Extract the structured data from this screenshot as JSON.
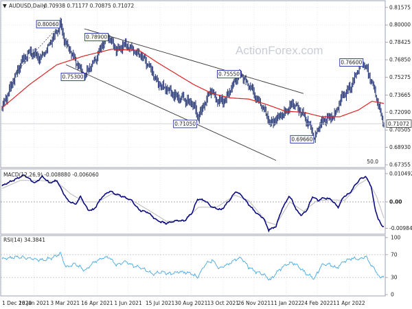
{
  "header": {
    "symbol": "AUDUSD,Daily",
    "ohlc": "0.70938 0.71177 0.70875 0.71072"
  },
  "watermark": "ActionForex.com",
  "colors": {
    "candle": "#2a3a78",
    "ma": "#dd2222",
    "trend": "#333333",
    "label_border": "#1e2fa8",
    "macd": "#0a0a80",
    "signal": "#b8b8b8",
    "rsi": "#44a8e4",
    "level": "#aaaaaa",
    "grid": "#d8dbe2"
  },
  "chart_data": [
    {
      "type": "candlestick",
      "title": "AUDUSD,Daily",
      "ylim": [
        0.67355,
        0.82
      ],
      "yticks": [
        "0.81575",
        "0.80000",
        "0.78425",
        "0.76850",
        "0.75275",
        "0.73665",
        "0.72090",
        "0.70505",
        "0.68930",
        "0.67355"
      ],
      "current_price": "0.71072",
      "scale_note": "50.0",
      "xticks": [
        "1 Dec 2020",
        "18 Jan 2021",
        "3 Mar 2021",
        "16 Apr 2021",
        "1 Jun 2021",
        "15 Jul 2021",
        "30 Aug 2021",
        "13 Oct 2021",
        "26 Nov 2021",
        "11 Jan 2022",
        "24 Feb 2022",
        "11 Apr 2022"
      ],
      "close_anchors": [
        [
          0,
          0.725
        ],
        [
          10,
          0.745
        ],
        [
          20,
          0.765
        ],
        [
          30,
          0.776
        ],
        [
          42,
          0.77
        ],
        [
          52,
          0.782
        ],
        [
          60,
          0.794
        ],
        [
          64,
          0.8006
        ],
        [
          68,
          0.786
        ],
        [
          75,
          0.776
        ],
        [
          85,
          0.76
        ],
        [
          91,
          0.753
        ],
        [
          96,
          0.762
        ],
        [
          105,
          0.773
        ],
        [
          112,
          0.786
        ],
        [
          117,
          0.789
        ],
        [
          125,
          0.778
        ],
        [
          135,
          0.782
        ],
        [
          145,
          0.776
        ],
        [
          152,
          0.772
        ],
        [
          160,
          0.764
        ],
        [
          170,
          0.748
        ],
        [
          180,
          0.742
        ],
        [
          190,
          0.735
        ],
        [
          200,
          0.733
        ],
        [
          210,
          0.728
        ],
        [
          214,
          0.716
        ],
        [
          220,
          0.725
        ],
        [
          228,
          0.741
        ],
        [
          236,
          0.732
        ],
        [
          244,
          0.732
        ],
        [
          250,
          0.742
        ],
        [
          256,
          0.751
        ],
        [
          262,
          0.7555
        ],
        [
          268,
          0.748
        ],
        [
          276,
          0.738
        ],
        [
          286,
          0.725
        ],
        [
          294,
          0.711
        ],
        [
          300,
          0.715
        ],
        [
          310,
          0.721
        ],
        [
          318,
          0.728
        ],
        [
          324,
          0.725
        ],
        [
          330,
          0.718
        ],
        [
          338,
          0.708
        ],
        [
          342,
          0.6966
        ],
        [
          348,
          0.712
        ],
        [
          356,
          0.716
        ],
        [
          364,
          0.718
        ],
        [
          372,
          0.735
        ],
        [
          378,
          0.74
        ],
        [
          384,
          0.748
        ],
        [
          390,
          0.76
        ],
        [
          396,
          0.766
        ],
        [
          400,
          0.758
        ],
        [
          408,
          0.74
        ],
        [
          414,
          0.722
        ],
        [
          418,
          0.7107
        ]
      ],
      "moving_average_anchors": [
        [
          0,
          0.725
        ],
        [
          30,
          0.746
        ],
        [
          60,
          0.764
        ],
        [
          90,
          0.772
        ],
        [
          120,
          0.778
        ],
        [
          150,
          0.777
        ],
        [
          170,
          0.766
        ],
        [
          190,
          0.756
        ],
        [
          210,
          0.746
        ],
        [
          230,
          0.738
        ],
        [
          250,
          0.734
        ],
        [
          270,
          0.733
        ],
        [
          290,
          0.728
        ],
        [
          310,
          0.722
        ],
        [
          330,
          0.721
        ],
        [
          350,
          0.717
        ],
        [
          370,
          0.717
        ],
        [
          390,
          0.723
        ],
        [
          405,
          0.731
        ],
        [
          418,
          0.729
        ]
      ],
      "labels": [
        {
          "text": "0.80060",
          "bar": 64,
          "price": 0.8006,
          "side": "left"
        },
        {
          "text": "0.78900",
          "bar": 117,
          "price": 0.789,
          "side": "left"
        },
        {
          "text": "0.75300",
          "bar": 91,
          "price": 0.753,
          "side": "left"
        },
        {
          "text": "0.75550",
          "bar": 262,
          "price": 0.7555,
          "side": "left"
        },
        {
          "text": "0.71050",
          "bar": 214,
          "price": 0.7105,
          "side": "left"
        },
        {
          "text": "0.69660",
          "bar": 342,
          "price": 0.6966,
          "side": "left"
        },
        {
          "text": "0.76600",
          "bar": 396,
          "price": 0.766,
          "side": "left"
        }
      ],
      "trendlines": [
        {
          "from": [
            90,
            0.7965
          ],
          "to": [
            330,
            0.738
          ]
        },
        {
          "from": [
            70,
            0.764
          ],
          "to": [
            300,
            0.6775
          ]
        }
      ]
    },
    {
      "type": "line",
      "title": "MACD(12,26,9) -0.008880 -0.006060",
      "ylim": [
        -0.0115,
        0.0115
      ],
      "yticks": [
        "0.010492",
        "0.00",
        "-0.009842"
      ],
      "zero_line": 0,
      "series": [
        {
          "name": "MACD",
          "anchors": [
            [
              0,
              0.006
            ],
            [
              12,
              0.008
            ],
            [
              24,
              0.01
            ],
            [
              36,
              0.007
            ],
            [
              44,
              0.0095
            ],
            [
              52,
              0.007
            ],
            [
              60,
              0.008
            ],
            [
              66,
              0.004
            ],
            [
              72,
              0.0005
            ],
            [
              80,
              -0.001
            ],
            [
              86,
              0.002
            ],
            [
              94,
              -0.003
            ],
            [
              100,
              -0.003
            ],
            [
              110,
              0.002
            ],
            [
              118,
              0.004
            ],
            [
              124,
              0.003
            ],
            [
              132,
              0.002
            ],
            [
              142,
              0.0005
            ],
            [
              150,
              -0.003
            ],
            [
              160,
              -0.004
            ],
            [
              170,
              -0.007
            ],
            [
              180,
              -0.008
            ],
            [
              190,
              -0.007
            ],
            [
              200,
              -0.007
            ],
            [
              208,
              -0.004
            ],
            [
              214,
              0.001
            ],
            [
              222,
              0.0005
            ],
            [
              230,
              -0.002
            ],
            [
              240,
              -0.003
            ],
            [
              250,
              0.001
            ],
            [
              256,
              0.004
            ],
            [
              262,
              0.0025
            ],
            [
              270,
              -0.001
            ],
            [
              278,
              -0.004
            ],
            [
              286,
              -0.006
            ],
            [
              292,
              -0.0105
            ],
            [
              300,
              -0.009
            ],
            [
              306,
              -0.003
            ],
            [
              314,
              0.002
            ],
            [
              318,
              0.0005
            ],
            [
              322,
              -0.003
            ],
            [
              328,
              -0.005
            ],
            [
              334,
              -0.003
            ],
            [
              340,
              0.002
            ],
            [
              346,
              0.0005
            ],
            [
              352,
              0.0015
            ],
            [
              360,
              0.001
            ],
            [
              368,
              -0.002
            ],
            [
              374,
              0.002
            ],
            [
              380,
              0.003
            ],
            [
              386,
              0.006
            ],
            [
              392,
              0.0085
            ],
            [
              398,
              0.0095
            ],
            [
              404,
              0.006
            ],
            [
              408,
              -0.002
            ],
            [
              412,
              -0.0065
            ],
            [
              416,
              -0.009
            ],
            [
              418,
              -0.009
            ]
          ]
        },
        {
          "name": "Signal",
          "anchors": [
            [
              0,
              0.005
            ],
            [
              20,
              0.008
            ],
            [
              40,
              0.008
            ],
            [
              60,
              0.0075
            ],
            [
              75,
              0.003
            ],
            [
              90,
              0.0
            ],
            [
              105,
              0.0
            ],
            [
              120,
              0.003
            ],
            [
              140,
              0.001
            ],
            [
              160,
              -0.003
            ],
            [
              180,
              -0.0072
            ],
            [
              200,
              -0.007
            ],
            [
              215,
              -0.002
            ],
            [
              235,
              -0.002
            ],
            [
              255,
              0.0025
            ],
            [
              270,
              0.0005
            ],
            [
              290,
              -0.0075
            ],
            [
              300,
              -0.0085
            ],
            [
              315,
              0.0
            ],
            [
              330,
              -0.0035
            ],
            [
              345,
              0.0005
            ],
            [
              360,
              0.0008
            ],
            [
              375,
              0.0005
            ],
            [
              390,
              0.0065
            ],
            [
              400,
              0.0085
            ],
            [
              410,
              0.002
            ],
            [
              418,
              -0.006
            ]
          ]
        }
      ]
    },
    {
      "type": "line",
      "title": "RSI(14) 34.3841",
      "ylim": [
        0,
        100
      ],
      "yticks": [
        "100",
        "70",
        "30",
        "0"
      ],
      "levels": [
        70,
        30
      ],
      "series": [
        {
          "name": "RSI",
          "anchors": [
            [
              0,
              62
            ],
            [
              15,
              66
            ],
            [
              30,
              64
            ],
            [
              45,
              60
            ],
            [
              55,
              65
            ],
            [
              64,
              72
            ],
            [
              70,
              48
            ],
            [
              80,
              54
            ],
            [
              91,
              42
            ],
            [
              100,
              56
            ],
            [
              110,
              64
            ],
            [
              117,
              66
            ],
            [
              125,
              52
            ],
            [
              135,
              58
            ],
            [
              145,
              50
            ],
            [
              155,
              45
            ],
            [
              165,
              36
            ],
            [
              175,
              40
            ],
            [
              185,
              36
            ],
            [
              195,
              40
            ],
            [
              205,
              38
            ],
            [
              214,
              30
            ],
            [
              222,
              52
            ],
            [
              230,
              60
            ],
            [
              238,
              46
            ],
            [
              246,
              52
            ],
            [
              256,
              62
            ],
            [
              262,
              64
            ],
            [
              270,
              48
            ],
            [
              278,
              40
            ],
            [
              286,
              36
            ],
            [
              294,
              25
            ],
            [
              300,
              38
            ],
            [
              310,
              52
            ],
            [
              318,
              56
            ],
            [
              324,
              50
            ],
            [
              332,
              38
            ],
            [
              342,
              28
            ],
            [
              350,
              52
            ],
            [
              358,
              54
            ],
            [
              366,
              46
            ],
            [
              374,
              58
            ],
            [
              384,
              64
            ],
            [
              392,
              62
            ],
            [
              398,
              68
            ],
            [
              404,
              52
            ],
            [
              410,
              40
            ],
            [
              414,
              28
            ],
            [
              418,
              34
            ]
          ]
        }
      ]
    }
  ]
}
